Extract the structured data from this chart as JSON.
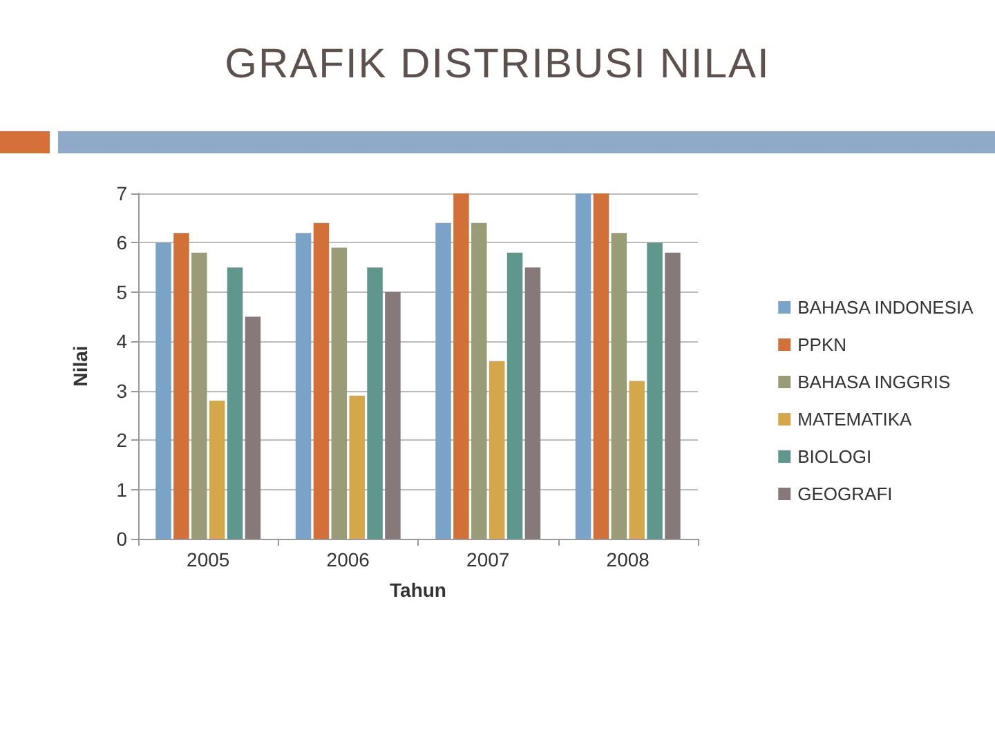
{
  "chart_data": {
    "type": "bar",
    "title": "GRAFIK DISTRIBUSI NILAI",
    "xlabel": "Tahun",
    "ylabel": "Nilai",
    "categories": [
      "2005",
      "2006",
      "2007",
      "2008"
    ],
    "series": [
      {
        "name": "BAHASA INDONESIA",
        "color": "#7ba3c8",
        "values": [
          6.0,
          6.2,
          6.4,
          7.0
        ]
      },
      {
        "name": "PPKN",
        "color": "#d2703a",
        "values": [
          6.2,
          6.4,
          7.0,
          7.0
        ]
      },
      {
        "name": "BAHASA INGGRIS",
        "color": "#9a9c78",
        "values": [
          5.8,
          5.9,
          6.4,
          6.2
        ]
      },
      {
        "name": "MATEMATIKA",
        "color": "#d4a84a",
        "values": [
          2.8,
          2.9,
          3.6,
          3.2
        ]
      },
      {
        "name": "BIOLOGI",
        "color": "#5f978c",
        "values": [
          5.5,
          5.5,
          5.8,
          6.0
        ]
      },
      {
        "name": "GEOGRAFI",
        "color": "#85797a",
        "values": [
          4.5,
          5.0,
          5.5,
          5.8
        ]
      }
    ],
    "ylim": [
      0,
      7
    ],
    "yticks": [
      0,
      1,
      2,
      3,
      4,
      5,
      6,
      7
    ],
    "grid": "y",
    "legend": "right"
  }
}
